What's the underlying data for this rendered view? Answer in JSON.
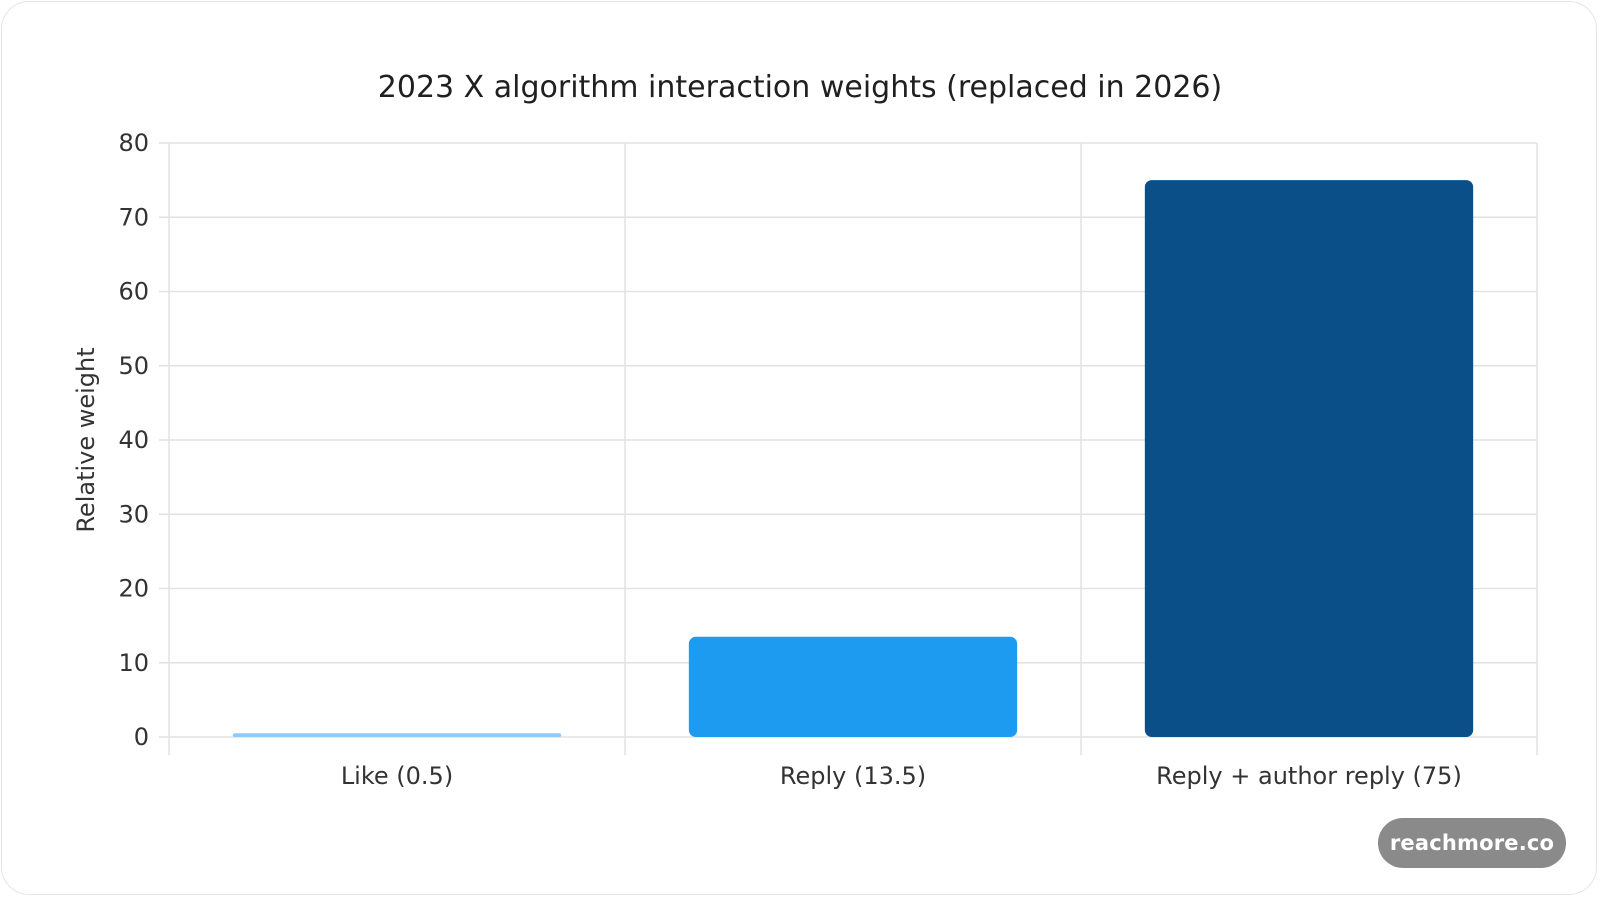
{
  "chart_data": {
    "type": "bar",
    "title": "2023 X algorithm interaction weights (replaced in 2026)",
    "ylabel": "Relative weight",
    "xlabel": "",
    "categories": [
      "Like (0.5)",
      "Reply (13.5)",
      "Reply + author reply (75)"
    ],
    "values": [
      0.5,
      13.5,
      75
    ],
    "colors": [
      "#90caf9",
      "#1d9bf0",
      "#0a4f88"
    ],
    "ylim": [
      0,
      80
    ],
    "yticks": [
      0,
      10,
      20,
      30,
      40,
      50,
      60,
      70,
      80
    ],
    "grid": true,
    "legend": "none"
  },
  "watermark": {
    "text": "reachmore.co"
  }
}
